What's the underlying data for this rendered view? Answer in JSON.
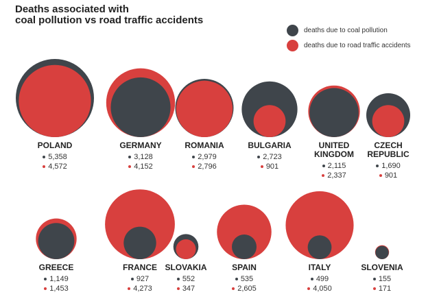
{
  "chart_data": {
    "type": "nested-bubble",
    "title": "Deaths associated with\ncoal pollution vs road traffic accidents",
    "categories": [
      "POLAND",
      "GERMANY",
      "ROMANIA",
      "BULGARIA",
      "UNITED KINGDOM",
      "CZECH REPUBLIC",
      "GREECE",
      "FRANCE",
      "SLOVAKIA",
      "SPAIN",
      "ITALY",
      "SLOVENIA"
    ],
    "series": [
      {
        "name": "deaths due to coal pollution",
        "color": "#3f454b",
        "values": [
          5358,
          3128,
          2979,
          2723,
          2115,
          1690,
          1149,
          927,
          552,
          535,
          499,
          155
        ],
        "value_labels": [
          "5,358",
          "3,128",
          "2,979",
          "2,723",
          "2,115",
          "1,690",
          "1,149",
          "927",
          "552",
          "535",
          "499",
          "155"
        ]
      },
      {
        "name": "deaths due to road traffic accidents",
        "color": "#d8403e",
        "values": [
          4572,
          4152,
          2796,
          901,
          2337,
          901,
          1453,
          4273,
          347,
          2605,
          4050,
          171
        ],
        "value_labels": [
          "4,572",
          "4,152",
          "2,796",
          "901",
          "2,337",
          "901",
          "1,453",
          "4,273",
          "347",
          "2,605",
          "4,050",
          "171"
        ]
      }
    ],
    "legend": "top-right"
  }
}
